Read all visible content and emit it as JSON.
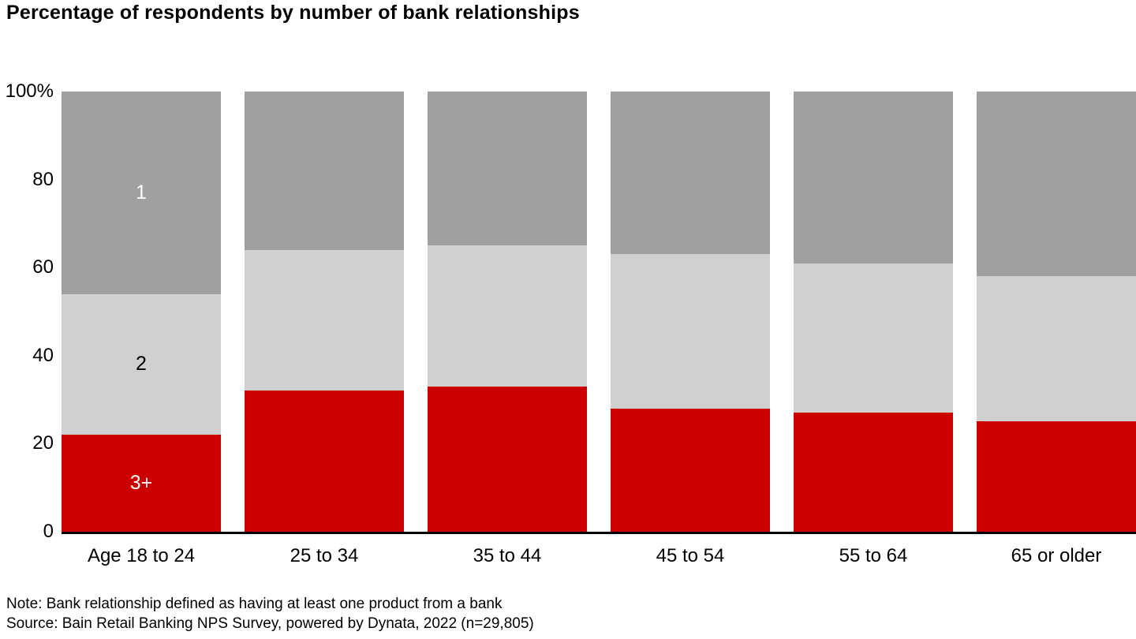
{
  "footer": {
    "note": "Note: Bank relationship defined as having at least one product from a bank",
    "source": "Source: Bain Retail Banking NPS Survey, powered by Dynata, 2022 (n=29,805)"
  },
  "chart_data": {
    "type": "bar",
    "subtype": "stacked-100-percent",
    "title": "Percentage of respondents by number of bank relationships",
    "categories": [
      "Age 18 to 24",
      "25 to 34",
      "35 to 44",
      "45 to 54",
      "55 to 64",
      "65 or older"
    ],
    "series": [
      {
        "name": "3+",
        "color": "#cc0000",
        "label_color": "#ffffff",
        "values": [
          22,
          32,
          33,
          28,
          27,
          25
        ]
      },
      {
        "name": "2",
        "color": "#d0d0d0",
        "label_color": "#000000",
        "values": [
          32,
          32,
          32,
          35,
          34,
          33
        ]
      },
      {
        "name": "1",
        "color": "#a0a0a0",
        "label_color": "#ffffff",
        "values": [
          46,
          36,
          35,
          37,
          39,
          42
        ]
      }
    ],
    "y_ticks": [
      "100%",
      "80",
      "60",
      "40",
      "20",
      "0"
    ],
    "y_tick_values": [
      100,
      80,
      60,
      40,
      20,
      0
    ],
    "ylim": [
      0,
      100
    ],
    "legend": "labels shown inside first bar only",
    "axis_color": "#000000",
    "grid": false
  }
}
